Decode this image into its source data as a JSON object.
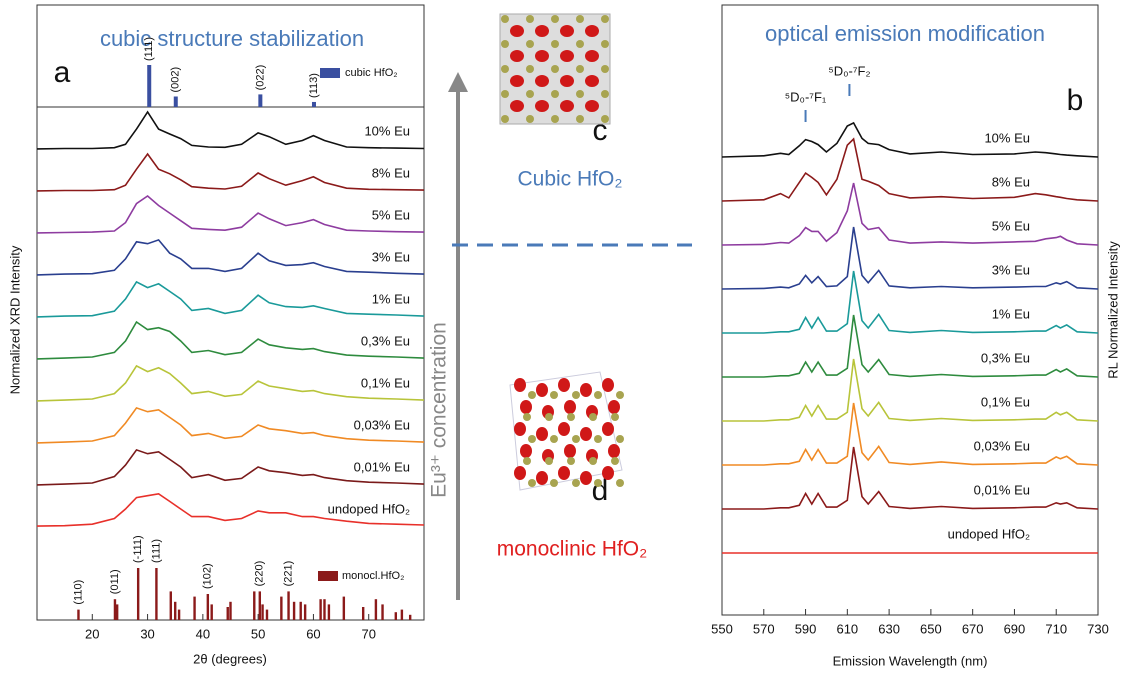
{
  "chart_data": [
    {
      "type": "line",
      "title": "cubic structure stabilization",
      "panel_label": "a",
      "x_label": "2θ (degrees)",
      "y_label": "Normalized XRD Intensity",
      "xlim": [
        10,
        80
      ],
      "xticks": [
        20,
        30,
        40,
        50,
        60,
        70
      ],
      "x": [
        10,
        15,
        20,
        24,
        26,
        28,
        30,
        32,
        34,
        36,
        38,
        41,
        44,
        47,
        50,
        52,
        55,
        58,
        60,
        62,
        66,
        70,
        75,
        80
      ],
      "series": [
        {
          "name": "10% Eu",
          "color": "#111111",
          "values": [
            0.03,
            0.04,
            0.04,
            0.06,
            0.15,
            0.55,
            1,
            0.55,
            0.42,
            0.3,
            0.12,
            0.08,
            0.07,
            0.15,
            0.45,
            0.35,
            0.15,
            0.25,
            0.38,
            0.25,
            0.08,
            0.06,
            0.05,
            0.04
          ]
        },
        {
          "name": "8% Eu",
          "color": "#8b1a1a",
          "values": [
            0.03,
            0.04,
            0.04,
            0.06,
            0.18,
            0.6,
            1,
            0.6,
            0.48,
            0.32,
            0.14,
            0.1,
            0.08,
            0.15,
            0.5,
            0.35,
            0.18,
            0.3,
            0.4,
            0.25,
            0.1,
            0.07,
            0.06,
            0.05
          ]
        },
        {
          "name": "5% Eu",
          "color": "#8e3ca0",
          "values": [
            0.03,
            0.04,
            0.05,
            0.08,
            0.3,
            0.8,
            1,
            0.75,
            0.55,
            0.35,
            0.15,
            0.12,
            0.1,
            0.18,
            0.55,
            0.4,
            0.22,
            0.3,
            0.38,
            0.25,
            0.1,
            0.08,
            0.06,
            0.05
          ]
        },
        {
          "name": "3% Eu",
          "color": "#2a3f8f",
          "values": [
            0.03,
            0.05,
            0.06,
            0.15,
            0.45,
            0.9,
            0.85,
            0.95,
            0.6,
            0.45,
            0.2,
            0.2,
            0.12,
            0.2,
            0.6,
            0.4,
            0.28,
            0.3,
            0.35,
            0.25,
            0.12,
            0.1,
            0.07,
            0.05
          ]
        },
        {
          "name": "1% Eu",
          "color": "#1a9a9a",
          "values": [
            0.03,
            0.05,
            0.06,
            0.18,
            0.5,
            0.95,
            0.8,
            0.9,
            0.7,
            0.5,
            0.2,
            0.25,
            0.12,
            0.2,
            0.6,
            0.4,
            0.3,
            0.28,
            0.32,
            0.25,
            0.12,
            0.1,
            0.08,
            0.05
          ]
        },
        {
          "name": "0,3% Eu",
          "color": "#2e8b3e",
          "values": [
            0.03,
            0.05,
            0.08,
            0.2,
            0.5,
            1,
            0.8,
            0.85,
            0.75,
            0.5,
            0.2,
            0.25,
            0.14,
            0.2,
            0.55,
            0.4,
            0.32,
            0.28,
            0.3,
            0.22,
            0.13,
            0.1,
            0.08,
            0.05
          ]
        },
        {
          "name": "0,1% Eu",
          "color": "#b8c43a",
          "values": [
            0.03,
            0.05,
            0.08,
            0.22,
            0.5,
            0.95,
            0.8,
            0.9,
            0.75,
            0.5,
            0.22,
            0.28,
            0.15,
            0.2,
            0.55,
            0.42,
            0.35,
            0.28,
            0.3,
            0.22,
            0.14,
            0.1,
            0.08,
            0.05
          ]
        },
        {
          "name": "0,03% Eu",
          "color": "#f08a24",
          "values": [
            0.03,
            0.05,
            0.08,
            0.22,
            0.55,
            0.95,
            0.85,
            0.9,
            0.7,
            0.5,
            0.22,
            0.28,
            0.15,
            0.2,
            0.5,
            0.4,
            0.35,
            0.28,
            0.3,
            0.22,
            0.14,
            0.1,
            0.08,
            0.05
          ]
        },
        {
          "name": "0,01% Eu",
          "color": "#7a1a1a",
          "values": [
            0.03,
            0.05,
            0.08,
            0.25,
            0.55,
            0.95,
            0.85,
            0.9,
            0.7,
            0.5,
            0.22,
            0.3,
            0.15,
            0.2,
            0.5,
            0.4,
            0.35,
            0.28,
            0.3,
            0.22,
            0.14,
            0.1,
            0.08,
            0.05
          ]
        },
        {
          "name": "undoped HfO₂",
          "color": "#e8302a",
          "values": [
            0.05,
            0.06,
            0.1,
            0.25,
            0.5,
            0.8,
            0.85,
            0.9,
            0.7,
            0.5,
            0.3,
            0.3,
            0.2,
            0.25,
            0.45,
            0.4,
            0.4,
            0.3,
            0.3,
            0.25,
            0.18,
            0.12,
            0.1,
            0.08
          ]
        }
      ],
      "reference_cubic": {
        "name": "cubic HfO₂",
        "color": "#3a4fa0",
        "positions": [
          30.3,
          35.1,
          50.4,
          60.1
        ],
        "heights": [
          1,
          0.25,
          0.3,
          0.12
        ],
        "labels": [
          "(111)",
          "(002)",
          "(022)",
          "(113)"
        ]
      },
      "reference_monoclinic": {
        "name": "monocl.HfO₂",
        "color": "#8b1a1a",
        "positions": [
          17.5,
          24.1,
          24.5,
          28.3,
          31.6,
          34.2,
          35.0,
          35.7,
          38.5,
          40.9,
          41.6,
          44.5,
          45.0,
          49.3,
          50.3,
          50.8,
          51.6,
          54.2,
          55.5,
          56.5,
          57.7,
          58.5,
          61.3,
          62.0,
          62.8,
          65.5,
          69.0,
          71.3,
          72.5,
          74.9,
          76.0,
          77.5
        ],
        "heights": [
          0.2,
          0.4,
          0.3,
          1,
          1,
          0.55,
          0.35,
          0.2,
          0.45,
          0.5,
          0.3,
          0.25,
          0.35,
          0.55,
          0.55,
          0.3,
          0.2,
          0.45,
          0.55,
          0.35,
          0.35,
          0.3,
          0.4,
          0.4,
          0.3,
          0.45,
          0.25,
          0.4,
          0.3,
          0.15,
          0.2,
          0.1
        ],
        "labels": [
          "(110)",
          "(011)",
          null,
          "(-111)",
          "(111)",
          null,
          null,
          null,
          null,
          "(102)",
          null,
          null,
          null,
          null,
          "(220)",
          null,
          null,
          null,
          "(221)",
          null,
          null,
          null,
          null,
          null,
          null,
          null,
          null,
          null,
          null,
          null,
          null,
          null
        ]
      }
    },
    {
      "type": "line",
      "title": "optical emission modification",
      "panel_label": "b",
      "x_label": "Emission Wavelength (nm)",
      "y_label": "RL Normalized Intensity",
      "xlim": [
        550,
        730
      ],
      "xticks": [
        550,
        570,
        590,
        610,
        630,
        650,
        670,
        690,
        710,
        730
      ],
      "x": [
        550,
        570,
        578,
        582,
        587,
        590,
        593,
        596,
        600,
        605,
        610,
        613,
        617,
        620,
        625,
        630,
        640,
        655,
        670,
        690,
        700,
        705,
        710,
        712,
        715,
        720,
        730
      ],
      "annotations": [
        {
          "text": "⁵D₀-⁷F₁",
          "x": 590
        },
        {
          "text": "⁵D₀-⁷F₂",
          "x": 611
        }
      ],
      "series": [
        {
          "name": "10% Eu",
          "color": "#111111",
          "values": [
            0,
            0.02,
            0.06,
            0.04,
            0.18,
            0.28,
            0.25,
            0.2,
            0.08,
            0.22,
            0.5,
            0.55,
            0.3,
            0.22,
            0.2,
            0.12,
            0.05,
            0.08,
            0.04,
            0.05,
            0.08,
            0.07,
            0.05,
            0.04,
            0.03,
            0.02,
            0
          ]
        },
        {
          "name": "8% Eu",
          "color": "#8b1a1a",
          "values": [
            0,
            0.02,
            0.12,
            0.05,
            0.3,
            0.45,
            0.38,
            0.3,
            0.1,
            0.35,
            0.9,
            1,
            0.35,
            0.32,
            0.25,
            0.12,
            0.05,
            0.07,
            0.04,
            0.06,
            0.12,
            0.1,
            0.07,
            0.06,
            0.04,
            0.02,
            0
          ]
        },
        {
          "name": "5% Eu",
          "color": "#8e3ca0",
          "values": [
            0,
            0.01,
            0.04,
            0.03,
            0.15,
            0.28,
            0.22,
            0.22,
            0.06,
            0.2,
            0.55,
            1,
            0.35,
            0.25,
            0.28,
            0.08,
            0.03,
            0.05,
            0.03,
            0.05,
            0.06,
            0.1,
            0.12,
            0.14,
            0.08,
            0.02,
            0
          ]
        },
        {
          "name": "3% Eu",
          "color": "#2a3f8f",
          "values": [
            0,
            0.01,
            0.03,
            0.02,
            0.08,
            0.22,
            0.1,
            0.2,
            0.04,
            0.05,
            0.2,
            1,
            0.22,
            0.1,
            0.3,
            0.05,
            0.02,
            0.04,
            0.02,
            0.03,
            0.04,
            0.04,
            0.1,
            0.08,
            0.12,
            0.02,
            0
          ]
        },
        {
          "name": "1% Eu",
          "color": "#1a9a9a",
          "values": [
            0,
            0,
            0.02,
            0.02,
            0.06,
            0.25,
            0.08,
            0.25,
            0.03,
            0.03,
            0.15,
            1,
            0.2,
            0.08,
            0.3,
            0.04,
            0.01,
            0.04,
            0.01,
            0.02,
            0.03,
            0.03,
            0.12,
            0.08,
            0.13,
            0.02,
            0
          ]
        },
        {
          "name": "0,3% Eu",
          "color": "#2e8b3e",
          "values": [
            0,
            0,
            0.02,
            0.02,
            0.06,
            0.24,
            0.08,
            0.24,
            0.03,
            0.03,
            0.14,
            1,
            0.2,
            0.08,
            0.28,
            0.04,
            0.01,
            0.04,
            0.01,
            0.02,
            0.03,
            0.03,
            0.12,
            0.08,
            0.13,
            0.02,
            0
          ]
        },
        {
          "name": "0,1% Eu",
          "color": "#b8c43a",
          "values": [
            0,
            0,
            0.02,
            0.02,
            0.06,
            0.25,
            0.08,
            0.25,
            0.03,
            0.03,
            0.14,
            1,
            0.2,
            0.08,
            0.3,
            0.04,
            0.01,
            0.04,
            0.01,
            0.02,
            0.03,
            0.03,
            0.14,
            0.1,
            0.14,
            0.02,
            0
          ]
        },
        {
          "name": "0,03% Eu",
          "color": "#f08a24",
          "values": [
            0,
            0,
            0.02,
            0.02,
            0.06,
            0.25,
            0.08,
            0.25,
            0.03,
            0.03,
            0.14,
            1,
            0.2,
            0.08,
            0.3,
            0.04,
            0.01,
            0.05,
            0.01,
            0.02,
            0.03,
            0.03,
            0.13,
            0.1,
            0.14,
            0.02,
            0
          ]
        },
        {
          "name": "0,01% Eu",
          "color": "#8b1a1a",
          "values": [
            0,
            0,
            0.02,
            0.02,
            0.06,
            0.25,
            0.08,
            0.25,
            0.03,
            0.03,
            0.14,
            1,
            0.2,
            0.08,
            0.28,
            0.04,
            0.01,
            0.04,
            0.01,
            0.02,
            0.03,
            0.03,
            0.1,
            0.08,
            0.1,
            0.02,
            0
          ]
        },
        {
          "name": "undoped HfO₂",
          "color": "#e8302a",
          "values": [
            0,
            0,
            0,
            0,
            0,
            0,
            0,
            0,
            0,
            0,
            0,
            0,
            0,
            0,
            0,
            0,
            0,
            0,
            0,
            0,
            0,
            0,
            0,
            0,
            0,
            0,
            0
          ]
        }
      ]
    }
  ],
  "diagram": {
    "arrow_label": "Eu³⁺ concentration",
    "cubic_label": "Cubic HfO₂",
    "monoclinic_label": "monoclinic HfO₂",
    "panel_c": "c",
    "panel_d": "d"
  }
}
